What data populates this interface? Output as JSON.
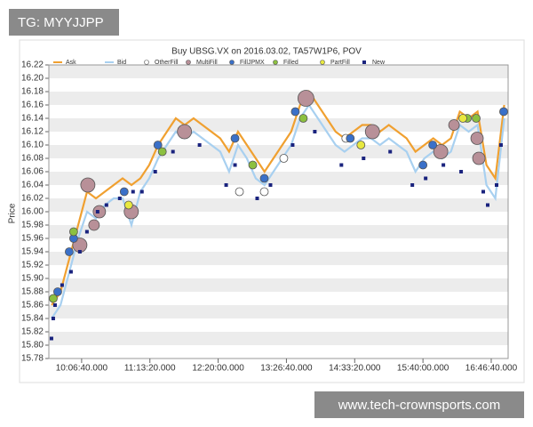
{
  "watermark_top": "TG: MYYJJPP",
  "watermark_bottom": "www.tech-crownsports.com",
  "chart_data": {
    "type": "line",
    "title": "Buy UBSG.VX on 2016.03.02, TA57W1P6, POV",
    "y_label": "Price",
    "grid": true,
    "legend": "top",
    "xlim": [
      34480,
      61390
    ],
    "xticks": [
      {
        "value": 36400,
        "label": "10:06:40.000"
      },
      {
        "value": 40400,
        "label": "11:13:20.000"
      },
      {
        "value": 44400,
        "label": "12:20:00.000"
      },
      {
        "value": 48400,
        "label": "13:26:40.000"
      },
      {
        "value": 52400,
        "label": "14:33:20.000"
      },
      {
        "value": 56400,
        "label": "15:40:00.000"
      },
      {
        "value": 60400,
        "label": "16:46:40.000"
      }
    ],
    "ylim": [
      15.78,
      16.22
    ],
    "yticks": [
      15.78,
      {
        "value": 15.8,
        "label": "15.80"
      },
      15.82,
      15.84,
      15.86,
      15.88,
      {
        "value": 15.9,
        "label": "15.90"
      },
      15.92,
      15.94,
      15.96,
      15.98,
      {
        "value": 16,
        "label": "16.00"
      },
      16.02,
      16.04,
      16.06,
      16.08,
      {
        "value": 16.1,
        "label": "16.10"
      },
      16.12,
      16.14,
      16.16,
      16.18,
      {
        "value": 16.2,
        "label": "16.20"
      },
      16.22
    ],
    "series": [
      {
        "name": "Ask",
        "type": "line",
        "color": "#f0a030",
        "x": [
          34640,
          35160,
          35680,
          36200,
          36720,
          37240,
          37760,
          38280,
          38800,
          39320,
          39840,
          40360,
          40880,
          41400,
          41920,
          42440,
          42960,
          43480,
          44000,
          44520,
          45040,
          45560,
          46080,
          46600,
          47120,
          47640,
          48160,
          48680,
          49200,
          49720,
          50240,
          50760,
          51280,
          51800,
          52320,
          52840,
          53360,
          53880,
          54400,
          54920,
          55440,
          55960,
          56480,
          57000,
          57520,
          58040,
          58560,
          59080,
          59600,
          60120,
          60640,
          61160
        ],
        "values": [
          15.86,
          15.88,
          15.93,
          15.98,
          16.03,
          16.02,
          16.03,
          16.04,
          16.05,
          16.04,
          16.05,
          16.07,
          16.1,
          16.12,
          16.14,
          16.13,
          16.14,
          16.13,
          16.12,
          16.11,
          16.09,
          16.12,
          16.1,
          16.08,
          16.06,
          16.08,
          16.1,
          16.12,
          16.16,
          16.18,
          16.16,
          16.14,
          16.12,
          16.11,
          16.12,
          16.13,
          16.13,
          16.12,
          16.13,
          16.12,
          16.11,
          16.09,
          16.1,
          16.11,
          16.1,
          16.11,
          16.15,
          16.14,
          16.15,
          16.07,
          16.05,
          16.16
        ]
      },
      {
        "name": "Bid",
        "type": "line",
        "color": "#a8d0f0",
        "x": [
          34640,
          35160,
          35680,
          36200,
          36720,
          37240,
          37760,
          38280,
          38800,
          39320,
          39840,
          40360,
          40880,
          41400,
          41920,
          42440,
          42960,
          43480,
          44000,
          44520,
          45040,
          45560,
          46080,
          46600,
          47120,
          47640,
          48160,
          48680,
          49200,
          49720,
          50240,
          50760,
          51280,
          51800,
          52320,
          52840,
          53360,
          53880,
          54400,
          54920,
          55440,
          55960,
          56480,
          57000,
          57520,
          58040,
          58560,
          59080,
          59600,
          60120,
          60640,
          61160
        ],
        "values": [
          15.84,
          15.86,
          15.91,
          15.96,
          16.0,
          15.99,
          16.01,
          16.02,
          16.02,
          15.98,
          16.03,
          16.05,
          16.08,
          16.1,
          16.12,
          16.11,
          16.12,
          16.11,
          16.1,
          16.09,
          16.06,
          16.1,
          16.08,
          16.05,
          16.04,
          16.06,
          16.08,
          16.1,
          16.14,
          16.16,
          16.14,
          16.12,
          16.1,
          16.09,
          16.1,
          16.11,
          16.11,
          16.1,
          16.11,
          16.1,
          16.09,
          16.06,
          16.08,
          16.09,
          16.08,
          16.09,
          16.13,
          16.12,
          16.13,
          16.04,
          16.02,
          16.14
        ]
      },
      {
        "name": "OtherFill",
        "type": "scatter",
        "marker": "circle",
        "color": "#ffffff",
        "x": [
          45647,
          47102,
          48245,
          51881
        ],
        "values": [
          16.03,
          16.03,
          16.08,
          16.11
        ]
      },
      {
        "name": "MultiFill",
        "type": "scatter",
        "marker": "circle",
        "color": "#b89098",
        "x": [
          36764,
          37127,
          37439,
          36296,
          39309,
          42426,
          49543,
          53440,
          57440,
          58219,
          59570,
          59674
        ],
        "values": [
          16.04,
          15.98,
          16.0,
          15.95,
          16.0,
          16.12,
          16.17,
          16.12,
          16.09,
          16.13,
          16.11,
          16.08
        ],
        "sizes": [
          8,
          6,
          7,
          8,
          8,
          8,
          9,
          8,
          8,
          6,
          7,
          7
        ]
      },
      {
        "name": "FillJPMX",
        "type": "scatter",
        "marker": "circle",
        "color": "#3a70c8",
        "x": [
          34997,
          35673,
          35932,
          40868,
          45387,
          48920,
          52141,
          56401,
          56972,
          61128,
          47102,
          38894
        ],
        "values": [
          15.88,
          15.94,
          15.96,
          16.1,
          16.11,
          16.15,
          16.11,
          16.07,
          16.1,
          16.15,
          16.05,
          16.03
        ]
      },
      {
        "name": "Filled",
        "type": "scatter",
        "marker": "circle",
        "color": "#8cc040",
        "x": [
          35932,
          41127,
          46426,
          49388,
          58998,
          59518,
          34738
        ],
        "values": [
          15.97,
          16.09,
          16.07,
          16.14,
          16.14,
          16.14,
          15.87
        ]
      },
      {
        "name": "PartFill",
        "type": "scatter",
        "marker": "circle",
        "color": "#e8e840",
        "x": [
          39153,
          52764,
          58739
        ],
        "values": [
          16.01,
          16.1,
          16.14
        ]
      },
      {
        "name": "New",
        "type": "scatter",
        "marker": "square",
        "color": "#1a237e",
        "x": [
          34634,
          34738,
          34842,
          35257,
          35777,
          36296,
          36712,
          37335,
          37855,
          38634,
          39413,
          39933,
          40712,
          41751,
          43309,
          44868,
          45387,
          46686,
          47465,
          48764,
          50063,
          51621,
          52920,
          54479,
          55777,
          56557,
          57596,
          58635,
          59933,
          60193,
          60713,
          60972
        ],
        "values": [
          15.81,
          15.84,
          15.86,
          15.89,
          15.91,
          15.94,
          15.97,
          16.0,
          16.01,
          16.02,
          16.03,
          16.03,
          16.06,
          16.09,
          16.1,
          16.04,
          16.07,
          16.02,
          16.04,
          16.1,
          16.12,
          16.07,
          16.08,
          16.09,
          16.04,
          16.05,
          16.07,
          16.06,
          16.03,
          16.01,
          16.04,
          16.1
        ]
      }
    ]
  }
}
